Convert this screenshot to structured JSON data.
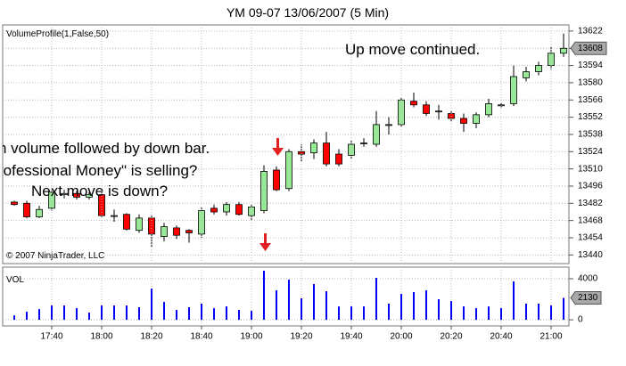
{
  "chart_data": [
    {
      "type": "candlestick",
      "title": "YM 09-07  13/06/2007  (5 Min)",
      "indicator_label": "VolumeProfile(1,False,50)",
      "copyright": "© 2007 NinjaTrader, LLC",
      "annotations": [
        "Up move continued.",
        "h volume followed by down bar.",
        "rofessional Money\" is selling?",
        "Next move is down?"
      ],
      "open": [
        13483,
        13482,
        13471,
        13478,
        13489,
        13490,
        13487,
        13489,
        13472,
        13473,
        13460,
        13470,
        13455,
        13462,
        13460,
        13457,
        13478,
        13475,
        13481,
        13472,
        13476,
        13509,
        13494,
        13524,
        13523,
        13531,
        13522,
        13521,
        13531,
        13530,
        13546,
        13546,
        13565,
        13562,
        13557,
        13555,
        13551,
        13547,
        13554,
        13562,
        13563,
        13584,
        13589,
        13594,
        13604
      ],
      "high": [
        13484,
        13484,
        13480,
        13493,
        13493,
        13492,
        13491,
        13491,
        13477,
        13474,
        13473,
        13472,
        13466,
        13464,
        13461,
        13479,
        13481,
        13483,
        13483,
        13481,
        13513,
        13512,
        13526,
        13530,
        13534,
        13540,
        13526,
        13533,
        13535,
        13557,
        13552,
        13568,
        13572,
        13565,
        13562,
        13557,
        13555,
        13556,
        13567,
        13564,
        13594,
        13593,
        13597,
        13609,
        13620
      ],
      "low": [
        13480,
        13470,
        13470,
        13476,
        13486,
        13485,
        13485,
        13471,
        13467,
        13460,
        13458,
        13446,
        13451,
        13453,
        13450,
        13454,
        13473,
        13472,
        13472,
        13468,
        13474,
        13492,
        13492,
        13516,
        13518,
        13512,
        13512,
        13518,
        13528,
        13528,
        13538,
        13544,
        13560,
        13553,
        13550,
        13548,
        13540,
        13543,
        13552,
        13560,
        13561,
        13581,
        13586,
        13591,
        13601
      ],
      "close": [
        13481,
        13471,
        13477,
        13491,
        13490,
        13487,
        13489,
        13472,
        13472,
        13461,
        13470,
        13457,
        13463,
        13456,
        13458,
        13476,
        13475,
        13481,
        13473,
        13479,
        13508,
        13493,
        13524,
        13522,
        13531,
        13514,
        13514,
        13530,
        13531,
        13546,
        13546,
        13566,
        13562,
        13555,
        13557,
        13551,
        13547,
        13554,
        13563,
        13562,
        13585,
        13589,
        13594,
        13604,
        13608
      ],
      "up_color": "#98e898",
      "down_color": "#ff0000",
      "ylim": [
        13433,
        13627
      ],
      "yticks": [
        13622,
        13608,
        13594,
        13580,
        13566,
        13552,
        13538,
        13524,
        13510,
        13496,
        13482,
        13468,
        13454,
        13440
      ],
      "last_price_tick": 1,
      "grid": true
    },
    {
      "type": "bar",
      "title": "VOL",
      "categories": [
        null,
        null,
        null,
        "17:40",
        null,
        null,
        null,
        "18:00",
        null,
        null,
        null,
        "18:20",
        null,
        null,
        null,
        "18:40",
        null,
        null,
        null,
        "19:00",
        null,
        null,
        null,
        "19:20",
        null,
        null,
        null,
        "19:40",
        null,
        null,
        null,
        "20:00",
        null,
        null,
        null,
        "20:20",
        null,
        null,
        null,
        "20:40",
        null,
        null,
        null,
        "21:00",
        null
      ],
      "values": [
        430,
        780,
        1040,
        1390,
        1390,
        1130,
        700,
        1390,
        1390,
        1390,
        1220,
        3040,
        1740,
        960,
        1220,
        1570,
        1130,
        1300,
        960,
        870,
        4780,
        2870,
        3910,
        2090,
        3480,
        2780,
        1300,
        1300,
        1300,
        4090,
        1570,
        2520,
        2700,
        2870,
        2000,
        1830,
        1300,
        1130,
        1300,
        1130,
        3740,
        1570,
        1570,
        1390,
        2130
      ],
      "color": "#0000ff",
      "ylim": [
        -600,
        5130
      ],
      "yticks": [
        0,
        4000
      ],
      "grid": true
    }
  ]
}
